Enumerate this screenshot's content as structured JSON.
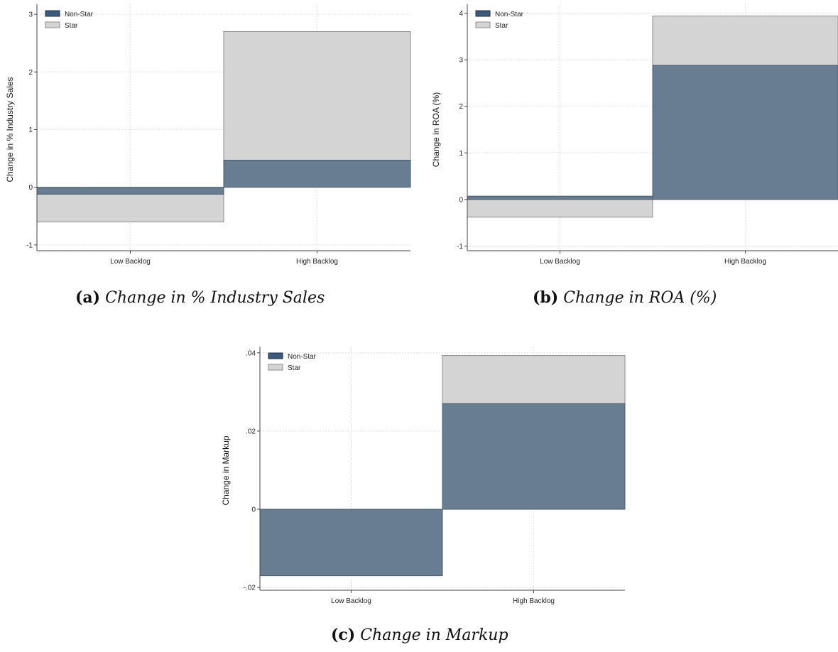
{
  "chart_data": [
    {
      "type": "bar",
      "stacked": true,
      "categories": [
        "Low Backlog",
        "High Backlog"
      ],
      "series": [
        {
          "name": "Non-Star",
          "values": [
            -0.12,
            0.47
          ]
        },
        {
          "name": "Star",
          "values": [
            -0.48,
            2.23
          ]
        }
      ],
      "ylabel": "Change in % Industry Sales",
      "ylim": [
        -1.1,
        3.1
      ],
      "yticks": [
        -1,
        0,
        1,
        2,
        3
      ],
      "yticklabels": [
        "-1",
        "0",
        "1",
        "2",
        "3"
      ],
      "grid": true,
      "legend": "top-left",
      "caption_letter": "(a)",
      "caption_text": "Change in % Industry Sales"
    },
    {
      "type": "bar",
      "stacked": true,
      "categories": [
        "Low Backlog",
        "High Backlog"
      ],
      "series": [
        {
          "name": "Non-Star",
          "values": [
            0.07,
            2.88
          ]
        },
        {
          "name": "Star",
          "values": [
            -0.45,
            1.06
          ]
        }
      ],
      "ylabel": "Change in ROA (%)",
      "ylim": [
        -1.1,
        4.1
      ],
      "yticks": [
        -1,
        0,
        1,
        2,
        3,
        4
      ],
      "yticklabels": [
        "-1",
        "0",
        "1",
        "2",
        "3",
        "4"
      ],
      "grid": true,
      "legend": "top-left",
      "caption_letter": "(b)",
      "caption_text": "Change in ROA (%)"
    },
    {
      "type": "bar",
      "stacked": true,
      "categories": [
        "Low Backlog",
        "High Backlog"
      ],
      "series": [
        {
          "name": "Non-Star",
          "values": [
            -0.017,
            0.027
          ]
        },
        {
          "name": "Star",
          "values": [
            0,
            0.0123
          ]
        }
      ],
      "ylabel": "Change in Markup",
      "ylim": [
        -0.0207,
        0.0405
      ],
      "yticks": [
        -0.02,
        0,
        0.02,
        0.04
      ],
      "yticklabels": [
        "-.02",
        "0",
        ".02",
        ".04"
      ],
      "grid": true,
      "legend": "top-left",
      "caption_letter": "(c)",
      "caption_text": "Change in Markup"
    }
  ],
  "colors": {
    "non_star_fill": "#687d92",
    "non_star_legend": "#3d5a7c",
    "non_star_edge": "#4a5c6e",
    "star_fill": "#d4d4d4",
    "star_edge": "#8c8c8c",
    "grid": "#d6d6d6",
    "axis": "#444444"
  }
}
